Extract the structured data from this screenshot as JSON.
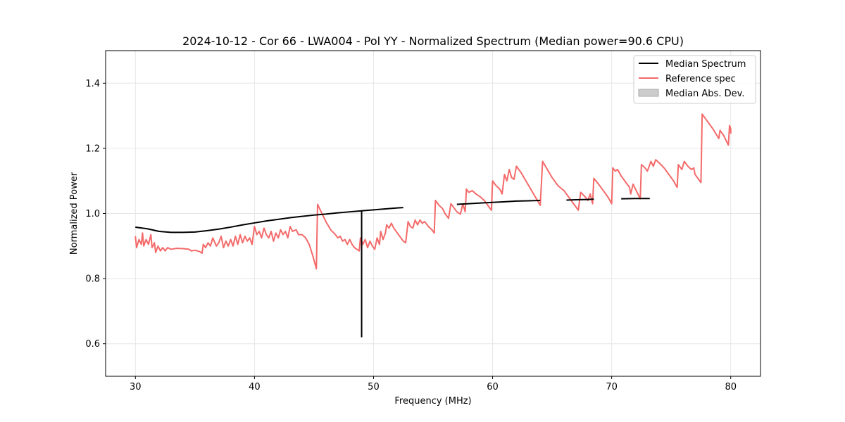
{
  "chart_data": {
    "type": "line",
    "title": "2024-10-12 - Cor 66 - LWA004 - Pol YY - Normalized Spectrum (Median power=90.6 CPU)",
    "xlabel": "Frequency (MHz)",
    "ylabel": "Normalized Power",
    "xlim": [
      27.5,
      82.5
    ],
    "ylim": [
      0.5,
      1.5
    ],
    "xticks": [
      30,
      40,
      50,
      60,
      70,
      80
    ],
    "yticks": [
      0.6,
      0.8,
      1.0,
      1.2,
      1.4
    ],
    "xtick_labels": [
      "30",
      "40",
      "50",
      "60",
      "70",
      "80"
    ],
    "ytick_labels": [
      "0.6",
      "0.8",
      "1.0",
      "1.2",
      "1.4"
    ],
    "grid": true,
    "legend_position": "top-right",
    "legend": [
      "Median Spectrum",
      "Reference spec",
      "Median Abs. Dev."
    ],
    "colors": {
      "median": "#000000",
      "reference": "#f46a6a",
      "mad_fill": "#cccccc",
      "mad_edge": "#aaaaaa",
      "grid": "#e6e6e6"
    },
    "series": [
      {
        "name": "Median Spectrum",
        "segments": [
          [
            [
              30.0,
              0.958
            ],
            [
              31.0,
              0.953
            ],
            [
              32.0,
              0.945
            ],
            [
              33.0,
              0.942
            ],
            [
              34.0,
              0.942
            ],
            [
              35.0,
              0.943
            ],
            [
              36.0,
              0.947
            ],
            [
              37.0,
              0.952
            ],
            [
              38.0,
              0.958
            ],
            [
              39.0,
              0.965
            ],
            [
              40.0,
              0.971
            ],
            [
              41.0,
              0.977
            ],
            [
              42.0,
              0.982
            ],
            [
              43.0,
              0.987
            ],
            [
              44.0,
              0.991
            ],
            [
              45.0,
              0.995
            ],
            [
              46.0,
              0.998
            ],
            [
              47.0,
              1.002
            ],
            [
              48.0,
              1.005
            ],
            [
              49.0,
              1.008
            ],
            [
              50.0,
              1.011
            ],
            [
              51.0,
              1.014
            ],
            [
              52.0,
              1.017
            ],
            [
              52.5,
              1.018
            ]
          ],
          [
            [
              49.0,
              1.01
            ],
            [
              49.0,
              0.62
            ]
          ],
          [
            [
              57.0,
              1.028
            ],
            [
              58.0,
              1.03
            ],
            [
              59.0,
              1.032
            ],
            [
              60.0,
              1.034
            ],
            [
              61.0,
              1.036
            ],
            [
              62.0,
              1.038
            ],
            [
              63.0,
              1.039
            ],
            [
              64.0,
              1.04
            ]
          ],
          [
            [
              66.2,
              1.041
            ],
            [
              67.0,
              1.042
            ],
            [
              68.0,
              1.043
            ],
            [
              68.5,
              1.044
            ]
          ],
          [
            [
              70.8,
              1.045
            ],
            [
              72.0,
              1.046
            ],
            [
              73.2,
              1.046
            ]
          ]
        ]
      },
      {
        "name": "Reference spec",
        "segments": [
          [
            [
              30.0,
              0.93
            ],
            [
              30.1,
              0.895
            ],
            [
              30.3,
              0.92
            ],
            [
              30.5,
              0.905
            ],
            [
              30.6,
              0.94
            ],
            [
              30.7,
              0.9
            ],
            [
              30.9,
              0.92
            ],
            [
              31.1,
              0.905
            ],
            [
              31.3,
              0.935
            ],
            [
              31.4,
              0.895
            ],
            [
              31.6,
              0.91
            ],
            [
              31.7,
              0.88
            ],
            [
              31.9,
              0.9
            ],
            [
              32.1,
              0.885
            ],
            [
              32.3,
              0.895
            ],
            [
              32.5,
              0.885
            ],
            [
              32.7,
              0.895
            ],
            [
              33.0,
              0.89
            ],
            [
              33.5,
              0.893
            ],
            [
              34.0,
              0.892
            ],
            [
              34.5,
              0.89
            ],
            [
              34.7,
              0.885
            ],
            [
              35.0,
              0.887
            ],
            [
              35.4,
              0.883
            ],
            [
              35.6,
              0.878
            ],
            [
              35.7,
              0.905
            ],
            [
              35.9,
              0.895
            ],
            [
              36.1,
              0.91
            ],
            [
              36.3,
              0.9
            ],
            [
              36.5,
              0.925
            ],
            [
              36.8,
              0.9
            ],
            [
              37.0,
              0.91
            ],
            [
              37.2,
              0.93
            ],
            [
              37.4,
              0.895
            ],
            [
              37.6,
              0.915
            ],
            [
              37.8,
              0.9
            ],
            [
              38.0,
              0.92
            ],
            [
              38.2,
              0.9
            ],
            [
              38.4,
              0.93
            ],
            [
              38.6,
              0.905
            ],
            [
              38.8,
              0.935
            ],
            [
              39.0,
              0.91
            ],
            [
              39.2,
              0.93
            ],
            [
              39.4,
              0.915
            ],
            [
              39.6,
              0.925
            ],
            [
              39.8,
              0.905
            ],
            [
              40.0,
              0.96
            ],
            [
              40.2,
              0.935
            ],
            [
              40.4,
              0.945
            ],
            [
              40.6,
              0.925
            ],
            [
              40.8,
              0.955
            ],
            [
              41.0,
              0.935
            ],
            [
              41.2,
              0.925
            ],
            [
              41.4,
              0.945
            ],
            [
              41.6,
              0.915
            ],
            [
              41.8,
              0.94
            ],
            [
              42.0,
              0.925
            ],
            [
              42.2,
              0.95
            ],
            [
              42.4,
              0.935
            ],
            [
              42.6,
              0.945
            ],
            [
              42.8,
              0.925
            ],
            [
              43.0,
              0.96
            ],
            [
              43.2,
              0.945
            ],
            [
              43.5,
              0.95
            ],
            [
              43.7,
              0.935
            ],
            [
              44.0,
              0.935
            ],
            [
              44.3,
              0.925
            ],
            [
              44.6,
              0.905
            ],
            [
              44.9,
              0.87
            ],
            [
              45.2,
              0.83
            ],
            [
              45.3,
              1.028
            ],
            [
              45.6,
              1.005
            ],
            [
              46.0,
              0.975
            ],
            [
              46.4,
              0.95
            ],
            [
              46.8,
              0.935
            ],
            [
              47.0,
              0.925
            ],
            [
              47.2,
              0.93
            ],
            [
              47.4,
              0.915
            ],
            [
              47.6,
              0.92
            ],
            [
              47.8,
              0.905
            ],
            [
              48.0,
              0.92
            ],
            [
              48.2,
              0.905
            ],
            [
              48.4,
              0.895
            ],
            [
              48.6,
              0.89
            ],
            [
              48.8,
              0.885
            ],
            [
              48.9,
              0.925
            ],
            [
              49.1,
              0.905
            ],
            [
              49.3,
              0.92
            ],
            [
              49.5,
              0.895
            ],
            [
              49.7,
              0.915
            ],
            [
              49.9,
              0.9
            ],
            [
              50.1,
              0.89
            ],
            [
              50.3,
              0.925
            ],
            [
              50.5,
              0.905
            ],
            [
              50.6,
              0.945
            ],
            [
              50.8,
              0.92
            ],
            [
              51.0,
              0.94
            ],
            [
              51.1,
              0.965
            ],
            [
              51.3,
              0.955
            ],
            [
              51.5,
              0.97
            ],
            [
              51.7,
              0.955
            ],
            [
              51.9,
              0.945
            ],
            [
              52.2,
              0.93
            ],
            [
              52.5,
              0.915
            ],
            [
              52.7,
              0.91
            ],
            [
              52.9,
              0.975
            ],
            [
              53.1,
              0.96
            ],
            [
              53.3,
              0.955
            ],
            [
              53.5,
              0.98
            ],
            [
              53.7,
              0.965
            ],
            [
              53.9,
              0.98
            ],
            [
              54.1,
              0.97
            ],
            [
              54.3,
              0.975
            ],
            [
              54.6,
              0.96
            ],
            [
              54.9,
              0.95
            ],
            [
              55.1,
              0.94
            ],
            [
              55.2,
              1.04
            ],
            [
              55.5,
              1.025
            ],
            [
              55.8,
              1.015
            ],
            [
              56.0,
              1.0
            ],
            [
              56.3,
              0.985
            ],
            [
              56.5,
              1.03
            ],
            [
              56.8,
              1.015
            ],
            [
              57.0,
              1.005
            ],
            [
              57.3,
              0.998
            ],
            [
              57.5,
              1.03
            ],
            [
              57.7,
              1.005
            ],
            [
              57.8,
              1.075
            ],
            [
              58.0,
              1.065
            ],
            [
              58.3,
              1.07
            ],
            [
              58.6,
              1.06
            ],
            [
              59.0,
              1.05
            ],
            [
              59.3,
              1.04
            ],
            [
              59.6,
              1.025
            ],
            [
              59.9,
              1.01
            ],
            [
              60.0,
              1.1
            ],
            [
              60.3,
              1.085
            ],
            [
              60.6,
              1.075
            ],
            [
              60.8,
              1.06
            ],
            [
              61.0,
              1.12
            ],
            [
              61.2,
              1.1
            ],
            [
              61.4,
              1.135
            ],
            [
              61.6,
              1.11
            ],
            [
              61.8,
              1.105
            ],
            [
              62.0,
              1.145
            ],
            [
              62.4,
              1.125
            ],
            [
              62.8,
              1.1
            ],
            [
              63.2,
              1.075
            ],
            [
              63.6,
              1.05
            ],
            [
              64.0,
              1.025
            ],
            [
              64.2,
              1.16
            ],
            [
              64.6,
              1.135
            ],
            [
              65.0,
              1.11
            ],
            [
              65.5,
              1.085
            ],
            [
              66.0,
              1.07
            ],
            [
              66.4,
              1.05
            ],
            [
              66.8,
              1.03
            ],
            [
              67.2,
              1.01
            ],
            [
              67.4,
              1.065
            ],
            [
              67.8,
              1.05
            ],
            [
              68.0,
              1.04
            ],
            [
              68.2,
              1.06
            ],
            [
              68.4,
              1.03
            ],
            [
              68.5,
              1.108
            ],
            [
              68.9,
              1.09
            ],
            [
              69.3,
              1.07
            ],
            [
              69.7,
              1.05
            ],
            [
              70.0,
              1.03
            ],
            [
              70.1,
              1.14
            ],
            [
              70.3,
              1.13
            ],
            [
              70.5,
              1.135
            ],
            [
              70.8,
              1.115
            ],
            [
              71.2,
              1.095
            ],
            [
              71.5,
              1.08
            ],
            [
              71.6,
              1.06
            ],
            [
              71.8,
              1.09
            ],
            [
              72.0,
              1.075
            ],
            [
              72.2,
              1.06
            ],
            [
              72.4,
              1.045
            ],
            [
              72.5,
              1.15
            ],
            [
              72.8,
              1.14
            ],
            [
              73.0,
              1.13
            ],
            [
              73.3,
              1.16
            ],
            [
              73.5,
              1.145
            ],
            [
              73.7,
              1.165
            ],
            [
              74.0,
              1.155
            ],
            [
              74.4,
              1.14
            ],
            [
              74.8,
              1.12
            ],
            [
              75.2,
              1.1
            ],
            [
              75.5,
              1.08
            ],
            [
              75.6,
              1.15
            ],
            [
              75.9,
              1.135
            ],
            [
              76.1,
              1.16
            ],
            [
              76.4,
              1.145
            ],
            [
              76.7,
              1.135
            ],
            [
              76.9,
              1.14
            ],
            [
              77.0,
              1.12
            ],
            [
              77.3,
              1.105
            ],
            [
              77.5,
              1.095
            ],
            [
              77.6,
              1.305
            ],
            [
              78.0,
              1.285
            ],
            [
              78.5,
              1.26
            ],
            [
              79.0,
              1.23
            ],
            [
              79.1,
              1.255
            ],
            [
              79.4,
              1.24
            ],
            [
              79.8,
              1.21
            ],
            [
              79.9,
              1.27
            ],
            [
              80.0,
              1.26
            ],
            [
              80.0,
              1.245
            ]
          ]
        ]
      },
      {
        "name": "Median Abs. Dev.",
        "segments": []
      }
    ]
  }
}
